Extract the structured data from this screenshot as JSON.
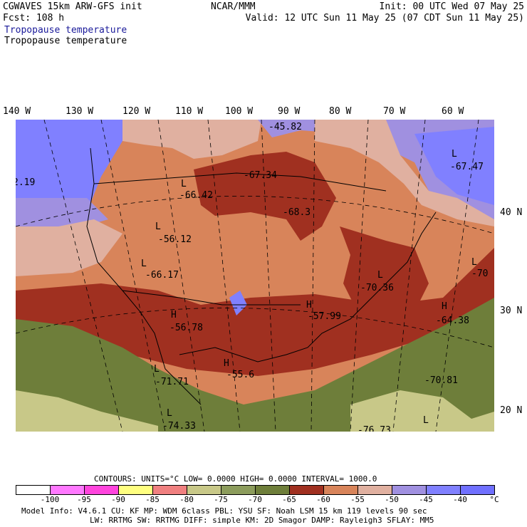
{
  "header": {
    "model_title": "CGWAVES 15km ARW-GFS init",
    "forecast": "Fcst:  108 h",
    "field_title_1": "Tropopause temperature",
    "field_title_2": "Tropopause temperature",
    "center": "NCAR/MMM",
    "init": "Init: 00 UTC Wed 07 May 25",
    "valid": "Valid: 12 UTC Sun 11 May 25 (07 CDT Sun 11 May 25)"
  },
  "longitudes": [
    "140 W",
    "130 W",
    "120 W",
    "110 W",
    "100 W",
    "90 W",
    "80 W",
    "70 W",
    "60 W"
  ],
  "latitudes": [
    "40 N",
    "30 N",
    "20 N"
  ],
  "map_labels": [
    {
      "text": "-45.82",
      "name": "value-label"
    },
    {
      "text": "-67.34",
      "name": "value-label"
    },
    {
      "text": "-68.3",
      "name": "value-label"
    },
    {
      "text": "-66.42",
      "name": "value-label"
    },
    {
      "text": "-56.12",
      "name": "value-label"
    },
    {
      "text": "-66.17",
      "name": "value-label"
    },
    {
      "text": "-56.78",
      "name": "value-label"
    },
    {
      "text": "-57.99",
      "name": "value-label"
    },
    {
      "text": "-70.36",
      "name": "value-label"
    },
    {
      "text": "-70",
      "name": "value-label"
    },
    {
      "text": "-64.38",
      "name": "value-label"
    },
    {
      "text": "-67.47",
      "name": "value-label"
    },
    {
      "text": "-71.71",
      "name": "value-label"
    },
    {
      "text": "-55.6",
      "name": "value-label"
    },
    {
      "text": "-70.81",
      "name": "value-label"
    },
    {
      "text": "-74.33",
      "name": "value-label"
    },
    {
      "text": "-76.73",
      "name": "value-label"
    },
    {
      "text": "2.19",
      "name": "value-label"
    }
  ],
  "hl_markers": [
    "L",
    "L",
    "L",
    "L",
    "H",
    "L",
    "L",
    "H",
    "L",
    "L",
    "L",
    "H",
    "H"
  ],
  "contours": {
    "line": "CONTOURS:  UNITS=°C  LOW=  0.0000       HIGH=  0.0000      INTERVAL=   1000.0"
  },
  "colorbar": {
    "colors": [
      "#ffffff",
      "#ff78ff",
      "#ff44dd",
      "#ffff80",
      "#f08080",
      "#c8c888",
      "#8c9c5c",
      "#6e7e3a",
      "#a03020",
      "#d8845a",
      "#e0b0a0",
      "#a090e0",
      "#8080ff",
      "#7070ff",
      "#7878f0"
    ],
    "ticks": [
      "-100",
      "-95",
      "-90",
      "-85",
      "-80",
      "-75",
      "-70",
      "-65",
      "-60",
      "-55",
      "-50",
      "-45",
      "-40",
      "°C"
    ]
  },
  "footer": {
    "line1": "Model Info: V4.6.1     CU: KF      MP: WDM 6class  PBL: YSU       SF: Noah LSM     15 km  119 levels  90 sec",
    "line2": "LW: RRTMG     SW: RRTMG  DIFF: simple KM: 2D Smagor DAMP: Rayleigh3  SFLAY: MM5"
  }
}
